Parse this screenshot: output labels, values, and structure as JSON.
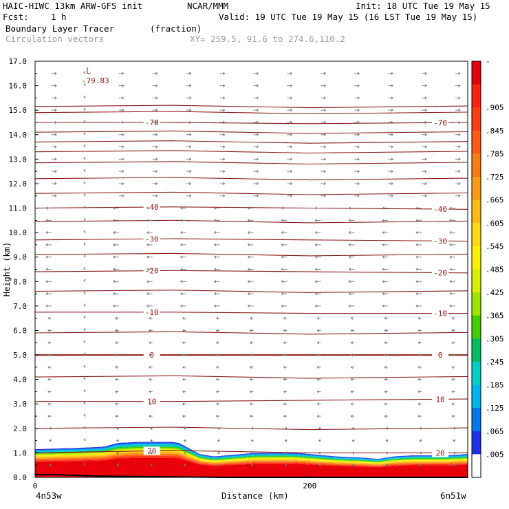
{
  "header": {
    "model": "HAIC-HIWC 13km ARW-GFS init",
    "org": "NCAR/MMM",
    "init": "Init: 18 UTC Tue 19 May 15",
    "fcst_label": "Fcst:",
    "fcst_value": "1 h",
    "valid": "Valid: 19 UTC Tue 19 May 15 (16 LST Tue 19 May 15)",
    "field1": "Boundary Layer Tracer",
    "field1_unit": "(fraction)",
    "field2": "Circulation vectors",
    "xy": "XY= 259.5, 91.6 to 274.6,110.2"
  },
  "colors": {
    "contour": "#8b1a1a",
    "vector": "#777777",
    "terrain": "#000000"
  },
  "chart_data": {
    "type": "heatmap",
    "xlabel": "Distance (km)",
    "ylabel": "Height (km)",
    "xlim": [
      0,
      315
    ],
    "ylim": [
      0,
      17
    ],
    "xticks": [
      0,
      200
    ],
    "yticks": [
      "0.0",
      "1.0",
      "2.0",
      "3.0",
      "4.0",
      "5.0",
      "6.0",
      "7.0",
      "8.0",
      "9.0",
      "10.0",
      "11.0",
      "12.0",
      "13.0",
      "14.0",
      "15.0",
      "16.0",
      "17.0"
    ],
    "x_endpoint_left": "4n53w",
    "x_endpoint_right": "6n51w",
    "extremum": {
      "symbol": "L",
      "value": "-79.83",
      "x": 40,
      "y": 16.6
    },
    "colorbar": {
      "labels": [
        "-",
        ".905",
        ".845",
        ".785",
        ".725",
        ".665",
        ".605",
        ".545",
        ".485",
        ".425",
        ".365",
        ".305",
        ".245",
        ".185",
        ".125",
        ".065",
        ".005"
      ],
      "colors": [
        "#e8000b",
        "#ff2010",
        "#ff3c10",
        "#ff5a10",
        "#ff7a10",
        "#ff9a10",
        "#ffba10",
        "#ffd810",
        "#fff000",
        "#d6f000",
        "#9be600",
        "#40d000",
        "#00c060",
        "#00d0c8",
        "#00b4f0",
        "#0078f0",
        "#2030e8",
        "#ffffff"
      ]
    },
    "temperature_contours": [
      {
        "value": -70,
        "label": "-70",
        "y": [
          14.5,
          14.5,
          14.45,
          14.5
        ]
      },
      {
        "value": -40,
        "label": "-40",
        "y": [
          11.0,
          11.05,
          11.0,
          10.95
        ]
      },
      {
        "value": -30,
        "label": "-30",
        "y": [
          9.7,
          9.75,
          9.7,
          9.65
        ]
      },
      {
        "value": -20,
        "label": "-20",
        "y": [
          8.4,
          8.45,
          8.4,
          8.35
        ]
      },
      {
        "value": -10,
        "label": "-10",
        "y": [
          6.75,
          6.75,
          6.7,
          6.7
        ]
      },
      {
        "value": 0,
        "label": "0",
        "y": [
          5.0,
          5.0,
          5.0,
          5.0
        ]
      },
      {
        "value": 10,
        "label": "10",
        "y": [
          3.1,
          3.1,
          3.15,
          3.2
        ]
      },
      {
        "value": 20,
        "label": "20",
        "y": [
          1.0,
          1.1,
          1.0,
          1.0
        ]
      }
    ],
    "contour_x": [
      0,
      100,
      200,
      315
    ],
    "unlabeled_contours_y": [
      15.15,
      14.9,
      14.1,
      13.7,
      13.3,
      12.85,
      12.2,
      11.6,
      10.45,
      9.1,
      7.6,
      5.9,
      4.1,
      2.0
    ],
    "tracer_top": {
      "x": [
        0,
        30,
        50,
        60,
        75,
        90,
        100,
        105,
        120,
        130,
        160,
        190,
        220,
        240,
        250,
        260,
        275,
        300,
        315
      ],
      "top": [
        1.15,
        1.2,
        1.25,
        1.4,
        1.45,
        1.45,
        1.45,
        1.4,
        0.95,
        0.85,
        1.0,
        1.0,
        0.85,
        0.8,
        0.75,
        0.85,
        0.9,
        0.9,
        0.95
      ]
    },
    "terrain": {
      "x": [
        0,
        20,
        40,
        60,
        80,
        100,
        120,
        140,
        160,
        200,
        250,
        315
      ],
      "h": [
        0.12,
        0.1,
        0.06,
        0.04,
        0.03,
        0.02,
        0.01,
        0.0,
        0.0,
        0.0,
        0.0,
        0.0
      ]
    }
  }
}
